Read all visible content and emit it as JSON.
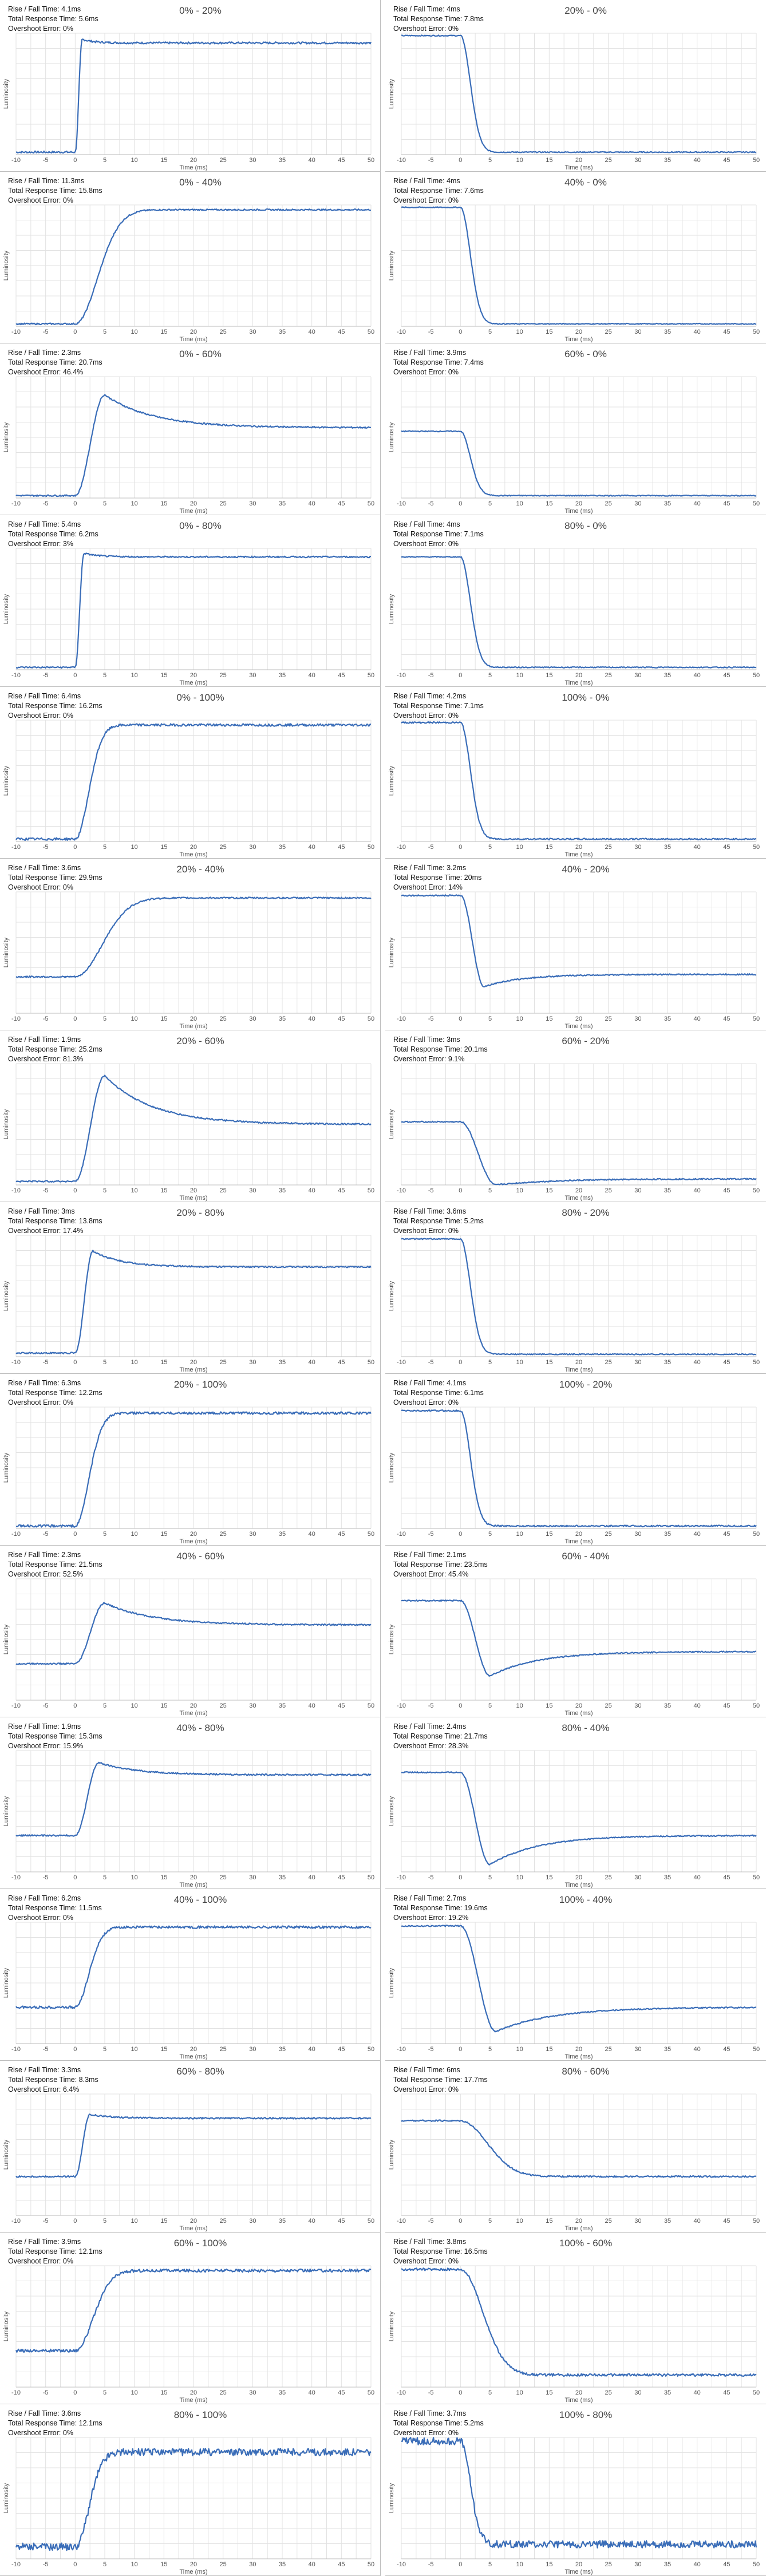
{
  "labels": {
    "rise_fall": "Rise / Fall Time: ",
    "total": "Total Response Time: ",
    "overshoot": "Overshoot Error: ",
    "ylabel": "Luminosity",
    "xlabel": "Time (ms)"
  },
  "chart_data": [
    {
      "type": "line",
      "title": "0% - 20%",
      "rise_fall": "4.1ms",
      "total": "5.6ms",
      "overshoot": "0%",
      "start": 0.02,
      "end": 0.92,
      "peak": 0.95,
      "settle": 1.2,
      "dir": "rise",
      "noise": 0.008,
      "xlim": [
        -10,
        50
      ],
      "xticks": [
        -10,
        -5,
        0,
        5,
        10,
        15,
        20,
        25,
        30,
        35,
        40,
        45,
        50
      ]
    },
    {
      "type": "line",
      "title": "20% - 0%",
      "rise_fall": "4ms",
      "total": "7.8ms",
      "overshoot": "0%",
      "start": 0.98,
      "end": 0.02,
      "peak": 0.02,
      "settle": 2.2,
      "dir": "fall",
      "noise": 0.004,
      "xlim": [
        -10,
        50
      ],
      "xticks": [
        -10,
        -5,
        0,
        5,
        10,
        15,
        20,
        25,
        30,
        35,
        40,
        45,
        50
      ]
    },
    {
      "type": "line",
      "title": "0% - 40%",
      "rise_fall": "11.3ms",
      "total": "15.8ms",
      "overshoot": "0%",
      "start": 0.02,
      "end": 0.96,
      "peak": 0.96,
      "settle": 5,
      "dir": "rise",
      "noise": 0.006,
      "xlim": [
        -10,
        50
      ],
      "xticks": [
        -10,
        -5,
        0,
        5,
        10,
        15,
        20,
        25,
        30,
        35,
        40,
        45,
        50
      ]
    },
    {
      "type": "line",
      "title": "40% - 0%",
      "rise_fall": "4ms",
      "total": "7.6ms",
      "overshoot": "0%",
      "start": 0.98,
      "end": 0.02,
      "peak": 0.02,
      "settle": 2.2,
      "dir": "fall",
      "noise": 0.004,
      "xlim": [
        -10,
        50
      ],
      "xticks": [
        -10,
        -5,
        0,
        5,
        10,
        15,
        20,
        25,
        30,
        35,
        40,
        45,
        50
      ]
    },
    {
      "type": "line",
      "title": "0% - 60%",
      "rise_fall": "2.3ms",
      "total": "20.7ms",
      "overshoot": "46.4%",
      "start": 0.02,
      "end": 0.58,
      "peak": 0.85,
      "settle": 5,
      "dir": "rise",
      "noise": 0.006,
      "xlim": [
        -10,
        50
      ],
      "xticks": [
        -10,
        -5,
        0,
        5,
        10,
        15,
        20,
        25,
        30,
        35,
        40,
        45,
        50
      ]
    },
    {
      "type": "line",
      "title": "60% - 0%",
      "rise_fall": "3.9ms",
      "total": "7.4ms",
      "overshoot": "0%",
      "start": 0.55,
      "end": 0.02,
      "peak": 0.02,
      "settle": 2.2,
      "dir": "fall",
      "noise": 0.004,
      "xlim": [
        -10,
        50
      ],
      "xticks": [
        -10,
        -5,
        0,
        5,
        10,
        15,
        20,
        25,
        30,
        35,
        40,
        45,
        50
      ]
    },
    {
      "type": "line",
      "title": "0% - 80%",
      "rise_fall": "5.4ms",
      "total": "6.2ms",
      "overshoot": "3%",
      "start": 0.02,
      "end": 0.93,
      "peak": 0.96,
      "settle": 1.5,
      "dir": "rise",
      "noise": 0.006,
      "xlim": [
        -10,
        50
      ],
      "xticks": [
        -10,
        -5,
        0,
        5,
        10,
        15,
        20,
        25,
        30,
        35,
        40,
        45,
        50
      ]
    },
    {
      "type": "line",
      "title": "80% - 0%",
      "rise_fall": "4ms",
      "total": "7.1ms",
      "overshoot": "0%",
      "start": 0.93,
      "end": 0.02,
      "peak": 0.02,
      "settle": 2.2,
      "dir": "fall",
      "noise": 0.004,
      "xlim": [
        -10,
        50
      ],
      "xticks": [
        -10,
        -5,
        0,
        5,
        10,
        15,
        20,
        25,
        30,
        35,
        40,
        45,
        50
      ]
    },
    {
      "type": "line",
      "title": "0% - 100%",
      "rise_fall": "6.4ms",
      "total": "16.2ms",
      "overshoot": "0%",
      "start": 0.02,
      "end": 0.96,
      "peak": 0.96,
      "settle": 3,
      "dir": "rise",
      "noise": 0.01,
      "xlim": [
        -10,
        50
      ],
      "xticks": [
        -10,
        -5,
        0,
        5,
        10,
        15,
        20,
        25,
        30,
        35,
        40,
        45,
        50
      ]
    },
    {
      "type": "line",
      "title": "100% - 0%",
      "rise_fall": "4.2ms",
      "total": "7.1ms",
      "overshoot": "0%",
      "start": 0.98,
      "end": 0.02,
      "peak": 0.02,
      "settle": 2.2,
      "dir": "fall",
      "noise": 0.006,
      "xlim": [
        -10,
        50
      ],
      "xticks": [
        -10,
        -5,
        0,
        5,
        10,
        15,
        20,
        25,
        30,
        35,
        40,
        45,
        50
      ]
    },
    {
      "type": "line",
      "title": "20% - 40%",
      "rise_fall": "3.6ms",
      "total": "29.9ms",
      "overshoot": "0%",
      "start": 0.3,
      "end": 0.95,
      "peak": 0.95,
      "settle": 6,
      "dir": "rise",
      "noise": 0.006,
      "xlim": [
        -10,
        50
      ],
      "xticks": [
        -10,
        -5,
        0,
        5,
        10,
        15,
        20,
        25,
        30,
        35,
        40,
        45,
        50
      ]
    },
    {
      "type": "line",
      "title": "40% - 20%",
      "rise_fall": "3.2ms",
      "total": "20ms",
      "overshoot": "14%",
      "start": 0.97,
      "end": 0.32,
      "peak": 0.22,
      "settle": 4,
      "dir": "fall",
      "noise": 0.005,
      "xlim": [
        -10,
        50
      ],
      "xticks": [
        -10,
        -5,
        0,
        5,
        10,
        15,
        20,
        25,
        30,
        35,
        40,
        45,
        50
      ]
    },
    {
      "type": "line",
      "title": "20% - 60%",
      "rise_fall": "1.9ms",
      "total": "25.2ms",
      "overshoot": "81.3%",
      "start": 0.03,
      "end": 0.5,
      "peak": 0.9,
      "settle": 5,
      "dir": "rise",
      "noise": 0.006,
      "xlim": [
        -10,
        50
      ],
      "xticks": [
        -10,
        -5,
        0,
        5,
        10,
        15,
        20,
        25,
        30,
        35,
        40,
        45,
        50
      ]
    },
    {
      "type": "line",
      "title": "60% - 20%",
      "rise_fall": "3ms",
      "total": "20.1ms",
      "overshoot": "9.1%",
      "start": 0.52,
      "end": 0.05,
      "peak": 0.0,
      "settle": 6,
      "dir": "fall",
      "noise": 0.005,
      "xlim": [
        -10,
        50
      ],
      "xticks": [
        -10,
        -5,
        0,
        5,
        10,
        15,
        20,
        25,
        30,
        35,
        40,
        45,
        50
      ]
    },
    {
      "type": "line",
      "title": "20% - 80%",
      "rise_fall": "3ms",
      "total": "13.8ms",
      "overshoot": "17.4%",
      "start": 0.03,
      "end": 0.74,
      "peak": 0.87,
      "settle": 3,
      "dir": "rise",
      "noise": 0.006,
      "xlim": [
        -10,
        50
      ],
      "xticks": [
        -10,
        -5,
        0,
        5,
        10,
        15,
        20,
        25,
        30,
        35,
        40,
        45,
        50
      ]
    },
    {
      "type": "line",
      "title": "80% - 20%",
      "rise_fall": "3.6ms",
      "total": "5.2ms",
      "overshoot": "0%",
      "start": 0.97,
      "end": 0.02,
      "peak": 0.02,
      "settle": 2.2,
      "dir": "fall",
      "noise": 0.004,
      "xlim": [
        -10,
        50
      ],
      "xticks": [
        -10,
        -5,
        0,
        5,
        10,
        15,
        20,
        25,
        30,
        35,
        40,
        45,
        50
      ]
    },
    {
      "type": "line",
      "title": "20% - 100%",
      "rise_fall": "6.3ms",
      "total": "12.2ms",
      "overshoot": "0%",
      "start": 0.02,
      "end": 0.95,
      "peak": 0.95,
      "settle": 3,
      "dir": "rise",
      "noise": 0.01,
      "xlim": [
        -10,
        50
      ],
      "xticks": [
        -10,
        -5,
        0,
        5,
        10,
        15,
        20,
        25,
        30,
        35,
        40,
        45,
        50
      ]
    },
    {
      "type": "line",
      "title": "100% - 20%",
      "rise_fall": "4.1ms",
      "total": "6.1ms",
      "overshoot": "0%",
      "start": 0.97,
      "end": 0.02,
      "peak": 0.02,
      "settle": 2.2,
      "dir": "fall",
      "noise": 0.006,
      "xlim": [
        -10,
        50
      ],
      "xticks": [
        -10,
        -5,
        0,
        5,
        10,
        15,
        20,
        25,
        30,
        35,
        40,
        45,
        50
      ]
    },
    {
      "type": "line",
      "title": "40% - 60%",
      "rise_fall": "2.3ms",
      "total": "21.5ms",
      "overshoot": "52.5%",
      "start": 0.3,
      "end": 0.62,
      "peak": 0.8,
      "settle": 5,
      "dir": "rise",
      "noise": 0.006,
      "xlim": [
        -10,
        50
      ],
      "xticks": [
        -10,
        -5,
        0,
        5,
        10,
        15,
        20,
        25,
        30,
        35,
        40,
        45,
        50
      ]
    },
    {
      "type": "line",
      "title": "60% - 40%",
      "rise_fall": "2.1ms",
      "total": "23.5ms",
      "overshoot": "45.4%",
      "start": 0.82,
      "end": 0.4,
      "peak": 0.2,
      "settle": 5,
      "dir": "fall",
      "noise": 0.005,
      "xlim": [
        -10,
        50
      ],
      "xticks": [
        -10,
        -5,
        0,
        5,
        10,
        15,
        20,
        25,
        30,
        35,
        40,
        45,
        50
      ]
    },
    {
      "type": "line",
      "title": "40% - 80%",
      "rise_fall": "1.9ms",
      "total": "15.3ms",
      "overshoot": "15.9%",
      "start": 0.3,
      "end": 0.8,
      "peak": 0.9,
      "settle": 4,
      "dir": "rise",
      "noise": 0.006,
      "xlim": [
        -10,
        50
      ],
      "xticks": [
        -10,
        -5,
        0,
        5,
        10,
        15,
        20,
        25,
        30,
        35,
        40,
        45,
        50
      ]
    },
    {
      "type": "line",
      "title": "80% - 40%",
      "rise_fall": "2.4ms",
      "total": "21.7ms",
      "overshoot": "28.3%",
      "start": 0.82,
      "end": 0.3,
      "peak": 0.06,
      "settle": 5,
      "dir": "fall",
      "noise": 0.005,
      "xlim": [
        -10,
        50
      ],
      "xticks": [
        -10,
        -5,
        0,
        5,
        10,
        15,
        20,
        25,
        30,
        35,
        40,
        45,
        50
      ]
    },
    {
      "type": "line",
      "title": "40% - 100%",
      "rise_fall": "6.2ms",
      "total": "11.5ms",
      "overshoot": "0%",
      "start": 0.3,
      "end": 0.96,
      "peak": 0.96,
      "settle": 3,
      "dir": "rise",
      "noise": 0.01,
      "xlim": [
        -10,
        50
      ],
      "xticks": [
        -10,
        -5,
        0,
        5,
        10,
        15,
        20,
        25,
        30,
        35,
        40,
        45,
        50
      ]
    },
    {
      "type": "line",
      "title": "100% - 40%",
      "rise_fall": "2.7ms",
      "total": "19.6ms",
      "overshoot": "19.2%",
      "start": 0.97,
      "end": 0.3,
      "peak": 0.1,
      "settle": 6,
      "dir": "fall",
      "noise": 0.005,
      "xlim": [
        -10,
        50
      ],
      "xticks": [
        -10,
        -5,
        0,
        5,
        10,
        15,
        20,
        25,
        30,
        35,
        40,
        45,
        50
      ]
    },
    {
      "type": "line",
      "title": "60% - 80%",
      "rise_fall": "3.3ms",
      "total": "8.3ms",
      "overshoot": "6.4%",
      "start": 0.32,
      "end": 0.8,
      "peak": 0.83,
      "settle": 2.5,
      "dir": "rise",
      "noise": 0.006,
      "xlim": [
        -10,
        50
      ],
      "xticks": [
        -10,
        -5,
        0,
        5,
        10,
        15,
        20,
        25,
        30,
        35,
        40,
        45,
        50
      ]
    },
    {
      "type": "line",
      "title": "80% - 60%",
      "rise_fall": "6ms",
      "total": "17.7ms",
      "overshoot": "0%",
      "start": 0.78,
      "end": 0.32,
      "peak": 0.32,
      "settle": 6,
      "dir": "fall",
      "noise": 0.006,
      "xlim": [
        -10,
        50
      ],
      "xticks": [
        -10,
        -5,
        0,
        5,
        10,
        15,
        20,
        25,
        30,
        35,
        40,
        45,
        50
      ]
    },
    {
      "type": "line",
      "title": "60% - 100%",
      "rise_fall": "3.9ms",
      "total": "12.1ms",
      "overshoot": "0%",
      "start": 0.3,
      "end": 0.96,
      "peak": 0.96,
      "settle": 4,
      "dir": "rise",
      "noise": 0.012,
      "xlim": [
        -10,
        50
      ],
      "xticks": [
        -10,
        -5,
        0,
        5,
        10,
        15,
        20,
        25,
        30,
        35,
        40,
        45,
        50
      ]
    },
    {
      "type": "line",
      "title": "100% - 60%",
      "rise_fall": "3.8ms",
      "total": "16.5ms",
      "overshoot": "0%",
      "start": 0.97,
      "end": 0.1,
      "peak": 0.1,
      "settle": 5,
      "dir": "fall",
      "noise": 0.01,
      "xlim": [
        -10,
        50
      ],
      "xticks": [
        -10,
        -5,
        0,
        5,
        10,
        15,
        20,
        25,
        30,
        35,
        40,
        45,
        50
      ]
    },
    {
      "type": "line",
      "title": "80% - 100%",
      "rise_fall": "3.6ms",
      "total": "12.1ms",
      "overshoot": "0%",
      "start": 0.1,
      "end": 0.88,
      "peak": 0.88,
      "settle": 3,
      "dir": "rise",
      "noise": 0.03,
      "xlim": [
        -10,
        50
      ],
      "xticks": [
        -10,
        -5,
        0,
        5,
        10,
        15,
        20,
        25,
        30,
        35,
        40,
        45,
        50
      ]
    },
    {
      "type": "line",
      "title": "100% - 80%",
      "rise_fall": "3.7ms",
      "total": "5.2ms",
      "overshoot": "0%",
      "start": 0.97,
      "end": 0.12,
      "peak": 0.12,
      "settle": 2.2,
      "dir": "fall",
      "noise": 0.03,
      "xlim": [
        -10,
        50
      ],
      "xticks": [
        -10,
        -5,
        0,
        5,
        10,
        15,
        20,
        25,
        30,
        35,
        40,
        45,
        50
      ]
    }
  ]
}
